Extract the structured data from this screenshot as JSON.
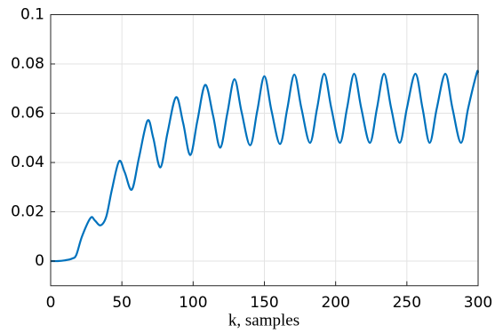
{
  "chart_data": {
    "type": "line",
    "xlabel": "k, samples",
    "x": [
      0,
      5,
      10,
      15,
      18,
      22,
      28,
      31,
      35,
      39,
      43,
      48,
      52,
      57,
      62,
      68,
      72,
      77,
      82,
      88,
      93,
      98,
      103,
      108.5,
      114,
      119,
      124,
      129,
      134,
      140,
      145,
      150,
      155,
      161,
      166,
      171,
      176,
      182,
      187,
      192,
      197,
      203,
      208,
      213,
      218,
      224,
      229,
      234,
      239,
      245,
      250,
      256,
      261,
      266,
      271,
      277,
      282,
      288,
      293,
      299,
      300
    ],
    "series": [
      {
        "color": "#0072bd",
        "values": [
          0,
          0,
          0.0003,
          0.001,
          0.0025,
          0.01,
          0.0175,
          0.0165,
          0.0145,
          0.018,
          0.029,
          0.0405,
          0.036,
          0.029,
          0.042,
          0.057,
          0.05,
          0.038,
          0.052,
          0.0665,
          0.056,
          0.043,
          0.057,
          0.0715,
          0.059,
          0.046,
          0.06,
          0.0738,
          0.0605,
          0.047,
          0.061,
          0.075,
          0.061,
          0.0475,
          0.0616,
          0.0757,
          0.062,
          0.048,
          0.062,
          0.076,
          0.062,
          0.048,
          0.062,
          0.076,
          0.062,
          0.048,
          0.062,
          0.076,
          0.062,
          0.048,
          0.062,
          0.076,
          0.062,
          0.048,
          0.062,
          0.076,
          0.062,
          0.048,
          0.062,
          0.0762,
          0.0762
        ]
      }
    ],
    "xlim": [
      0,
      300
    ],
    "xticks": [
      0,
      50,
      100,
      150,
      200,
      250,
      300
    ],
    "ylim": [
      -0.01,
      0.1
    ],
    "yticks": [
      0,
      0.02,
      0.04,
      0.06,
      0.08,
      0.1
    ],
    "grid": true
  }
}
